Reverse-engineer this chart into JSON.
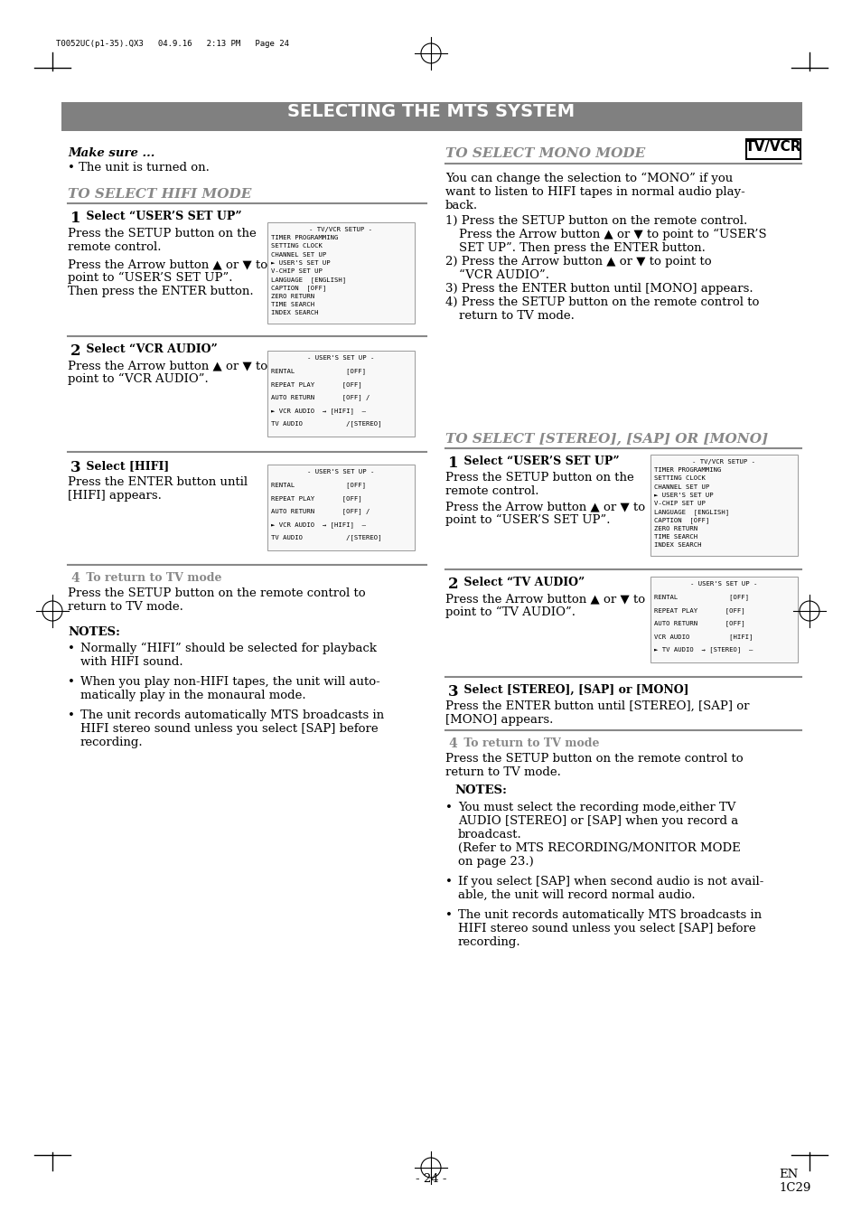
{
  "page_header": "T0052UC(p1-35).QX3   04.9.16   2:13 PM   Page 24",
  "main_title": "SELECTING THE MTS SYSTEM",
  "tv_vcr_label": "TV/VCR",
  "bg_color": "#ffffff",
  "header_bg": "#808080",
  "header_text_color": "#ffffff",
  "text_color": "#000000",
  "gray_color": "#888888",
  "page_num": "- 24 -",
  "page_en": "EN",
  "page_code": "1C29"
}
